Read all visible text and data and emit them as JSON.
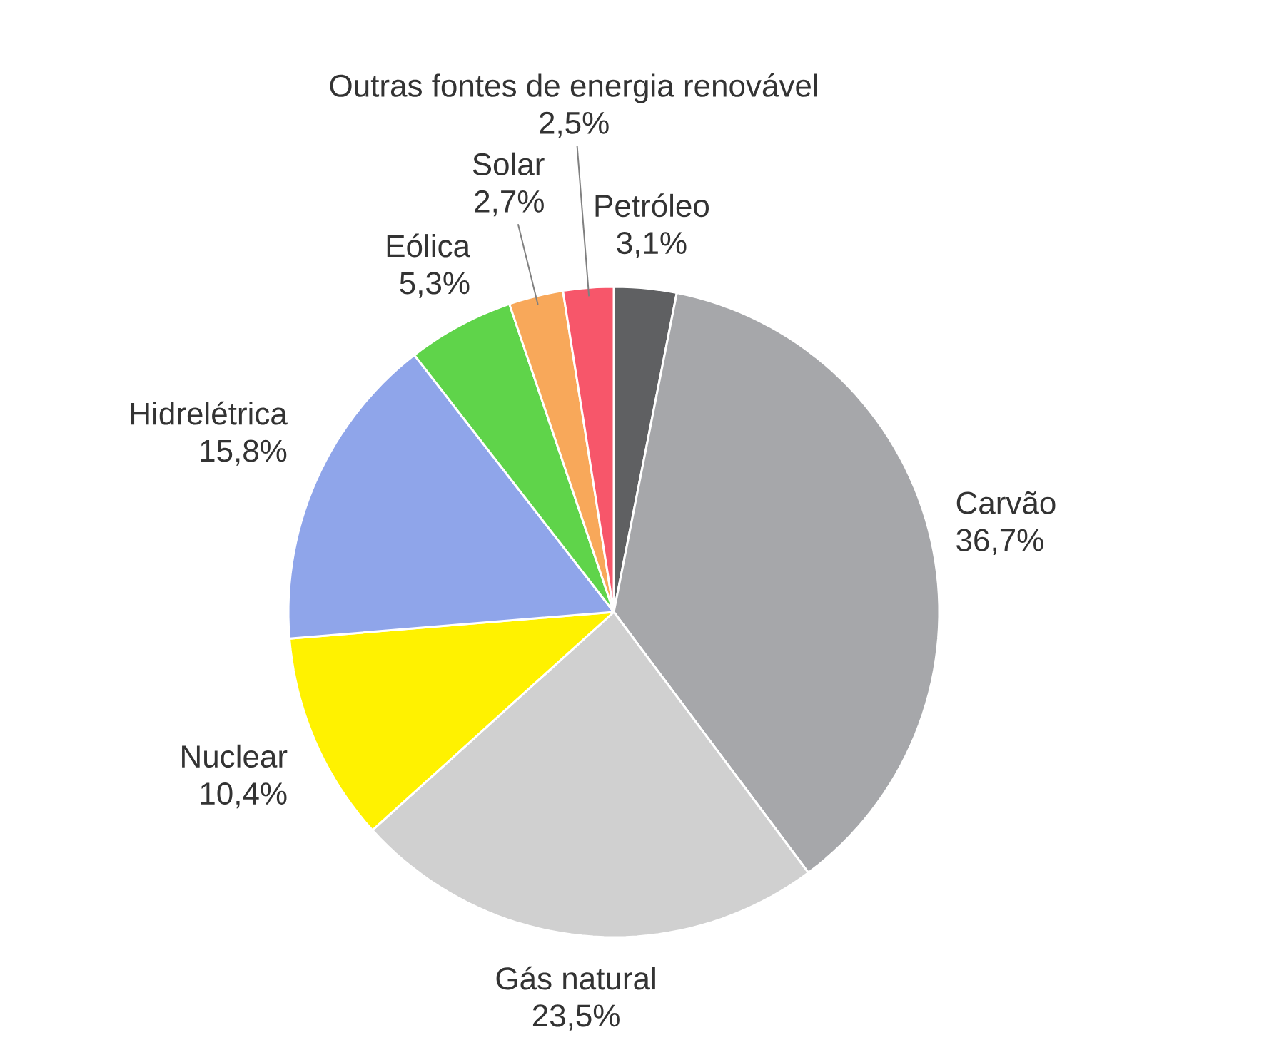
{
  "chart_data": {
    "type": "pie",
    "categories": [
      "Petróleo",
      "Carvão",
      "Gás natural",
      "Nuclear",
      "Hidrelétrica",
      "Eólica",
      "Solar",
      "Outras fontes de energia renovável"
    ],
    "values": [
      3.1,
      36.7,
      23.5,
      10.4,
      15.8,
      5.3,
      2.7,
      2.5
    ],
    "value_labels": [
      "3,1%",
      "36,7%",
      "23,5%",
      "10,4%",
      "15,8%",
      "5,3%",
      "2,7%",
      "2,5%"
    ],
    "colors": [
      "#5f6062",
      "#a6a7aa",
      "#d0d0d0",
      "#fff200",
      "#8fa5ea",
      "#5fd44a",
      "#f8a85a",
      "#f7566a"
    ]
  }
}
